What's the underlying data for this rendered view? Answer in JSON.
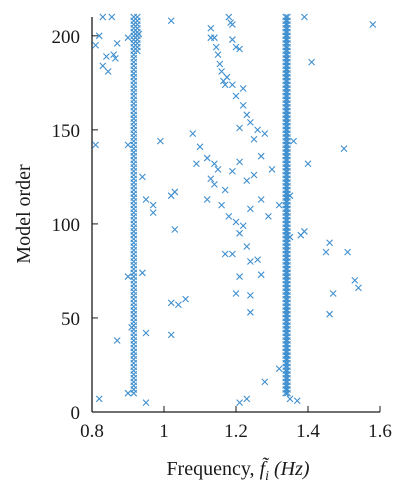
{
  "chart_data": {
    "type": "scatter",
    "title": "",
    "xlabel_prefix": "Frequency, ",
    "xlabel_symbol": "f̃",
    "xlabel_subscript": "i",
    "xlabel_unit": " (Hz)",
    "ylabel": "Model order",
    "xlim": [
      0.8,
      1.6
    ],
    "ylim": [
      0,
      210
    ],
    "xticks": [
      "0.8",
      "1",
      "1.2",
      "1.4",
      "1.6"
    ],
    "yticks": [
      "0",
      "50",
      "100",
      "150",
      "200"
    ],
    "xtick_values": [
      0.8,
      1.0,
      1.2,
      1.4,
      1.6
    ],
    "ytick_values": [
      0,
      50,
      100,
      150,
      200
    ],
    "grid": false,
    "legend": "none",
    "marker": "x",
    "color": "#3f8fcf",
    "stable_modes": [
      {
        "x": 0.916,
        "y_start": 10,
        "y_end": 210,
        "step": 2
      },
      {
        "x": 0.926,
        "y_start": 192,
        "y_end": 210,
        "step": 2
      },
      {
        "x": 1.338,
        "y_start": 10,
        "y_end": 210,
        "step": 2
      },
      {
        "x": 1.343,
        "y_start": 10,
        "y_end": 210,
        "step": 2
      }
    ],
    "points": [
      {
        "x": 0.83,
        "y": 210
      },
      {
        "x": 0.855,
        "y": 210
      },
      {
        "x": 0.81,
        "y": 195
      },
      {
        "x": 0.82,
        "y": 200
      },
      {
        "x": 0.84,
        "y": 189
      },
      {
        "x": 0.83,
        "y": 184
      },
      {
        "x": 0.845,
        "y": 181
      },
      {
        "x": 0.86,
        "y": 190
      },
      {
        "x": 0.87,
        "y": 196
      },
      {
        "x": 0.9,
        "y": 199
      },
      {
        "x": 0.93,
        "y": 201
      },
      {
        "x": 0.865,
        "y": 188
      },
      {
        "x": 0.81,
        "y": 142
      },
      {
        "x": 0.9,
        "y": 142
      },
      {
        "x": 0.94,
        "y": 125
      },
      {
        "x": 0.95,
        "y": 113
      },
      {
        "x": 0.97,
        "y": 110
      },
      {
        "x": 0.99,
        "y": 144
      },
      {
        "x": 0.97,
        "y": 106
      },
      {
        "x": 0.9,
        "y": 72
      },
      {
        "x": 0.94,
        "y": 74
      },
      {
        "x": 0.87,
        "y": 38
      },
      {
        "x": 0.91,
        "y": 45
      },
      {
        "x": 0.95,
        "y": 42
      },
      {
        "x": 0.95,
        "y": 5
      },
      {
        "x": 0.82,
        "y": 7
      },
      {
        "x": 0.9,
        "y": 10
      },
      {
        "x": 1.02,
        "y": 208
      },
      {
        "x": 1.02,
        "y": 115
      },
      {
        "x": 1.03,
        "y": 117
      },
      {
        "x": 1.03,
        "y": 97
      },
      {
        "x": 1.02,
        "y": 58
      },
      {
        "x": 1.04,
        "y": 57
      },
      {
        "x": 1.06,
        "y": 60
      },
      {
        "x": 1.02,
        "y": 41
      },
      {
        "x": 1.13,
        "y": 204
      },
      {
        "x": 1.14,
        "y": 199
      },
      {
        "x": 1.145,
        "y": 194
      },
      {
        "x": 1.15,
        "y": 190
      },
      {
        "x": 1.155,
        "y": 185
      },
      {
        "x": 1.16,
        "y": 181
      },
      {
        "x": 1.165,
        "y": 176
      },
      {
        "x": 1.17,
        "y": 174
      },
      {
        "x": 1.175,
        "y": 178
      },
      {
        "x": 1.18,
        "y": 210
      },
      {
        "x": 1.185,
        "y": 207
      },
      {
        "x": 1.19,
        "y": 206
      },
      {
        "x": 1.19,
        "y": 198
      },
      {
        "x": 1.2,
        "y": 194
      },
      {
        "x": 1.21,
        "y": 193
      },
      {
        "x": 1.13,
        "y": 199
      },
      {
        "x": 1.19,
        "y": 174
      },
      {
        "x": 1.2,
        "y": 168
      },
      {
        "x": 1.22,
        "y": 163
      },
      {
        "x": 1.23,
        "y": 158
      },
      {
        "x": 1.24,
        "y": 154
      },
      {
        "x": 1.22,
        "y": 172
      },
      {
        "x": 1.21,
        "y": 151
      },
      {
        "x": 1.26,
        "y": 150
      },
      {
        "x": 1.28,
        "y": 148
      },
      {
        "x": 1.25,
        "y": 145
      },
      {
        "x": 1.08,
        "y": 148
      },
      {
        "x": 1.1,
        "y": 141
      },
      {
        "x": 1.09,
        "y": 132
      },
      {
        "x": 1.12,
        "y": 135
      },
      {
        "x": 1.14,
        "y": 132
      },
      {
        "x": 1.15,
        "y": 129
      },
      {
        "x": 1.13,
        "y": 124
      },
      {
        "x": 1.14,
        "y": 121
      },
      {
        "x": 1.17,
        "y": 118
      },
      {
        "x": 1.19,
        "y": 128
      },
      {
        "x": 1.21,
        "y": 133
      },
      {
        "x": 1.25,
        "y": 126
      },
      {
        "x": 1.27,
        "y": 136
      },
      {
        "x": 1.3,
        "y": 129
      },
      {
        "x": 1.23,
        "y": 123
      },
      {
        "x": 1.12,
        "y": 113
      },
      {
        "x": 1.16,
        "y": 110
      },
      {
        "x": 1.18,
        "y": 104
      },
      {
        "x": 1.2,
        "y": 101
      },
      {
        "x": 1.22,
        "y": 99
      },
      {
        "x": 1.24,
        "y": 108
      },
      {
        "x": 1.27,
        "y": 113
      },
      {
        "x": 1.29,
        "y": 104
      },
      {
        "x": 1.32,
        "y": 110
      },
      {
        "x": 1.23,
        "y": 88
      },
      {
        "x": 1.21,
        "y": 95
      },
      {
        "x": 1.19,
        "y": 84
      },
      {
        "x": 1.26,
        "y": 81
      },
      {
        "x": 1.24,
        "y": 80
      },
      {
        "x": 1.27,
        "y": 73
      },
      {
        "x": 1.21,
        "y": 72
      },
      {
        "x": 1.2,
        "y": 63
      },
      {
        "x": 1.17,
        "y": 84
      },
      {
        "x": 1.24,
        "y": 62
      },
      {
        "x": 1.24,
        "y": 53
      },
      {
        "x": 1.21,
        "y": 5
      },
      {
        "x": 1.23,
        "y": 7
      },
      {
        "x": 1.28,
        "y": 16
      },
      {
        "x": 1.32,
        "y": 23
      },
      {
        "x": 1.35,
        "y": 7
      },
      {
        "x": 1.37,
        "y": 6
      },
      {
        "x": 1.39,
        "y": 210
      },
      {
        "x": 1.41,
        "y": 186
      },
      {
        "x": 1.4,
        "y": 132
      },
      {
        "x": 1.5,
        "y": 140
      },
      {
        "x": 1.38,
        "y": 94
      },
      {
        "x": 1.39,
        "y": 96
      },
      {
        "x": 1.45,
        "y": 85
      },
      {
        "x": 1.46,
        "y": 90
      },
      {
        "x": 1.51,
        "y": 85
      },
      {
        "x": 1.53,
        "y": 70
      },
      {
        "x": 1.54,
        "y": 66
      },
      {
        "x": 1.47,
        "y": 63
      },
      {
        "x": 1.46,
        "y": 52
      },
      {
        "x": 1.58,
        "y": 206
      },
      {
        "x": 1.36,
        "y": 144
      },
      {
        "x": 1.35,
        "y": 115
      },
      {
        "x": 1.35,
        "y": 93
      }
    ]
  }
}
